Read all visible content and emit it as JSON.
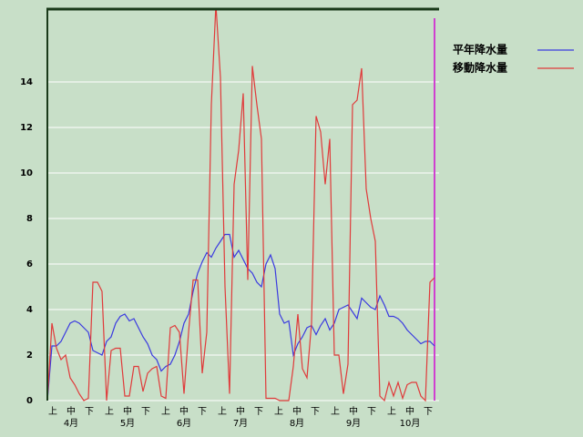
{
  "chart_data": {
    "type": "line",
    "series": [
      {
        "name": "平年降水量",
        "color": "#3a3ae0",
        "values": [
          0,
          2.4,
          2.4,
          2.6,
          3.0,
          3.4,
          3.5,
          3.4,
          3.2,
          3.0,
          2.2,
          2.1,
          2.0,
          2.6,
          2.8,
          3.4,
          3.7,
          3.8,
          3.5,
          3.6,
          3.2,
          2.8,
          2.5,
          2.0,
          1.8,
          1.3,
          1.5,
          1.6,
          2.0,
          2.6,
          3.4,
          3.8,
          4.8,
          5.6,
          6.1,
          6.5,
          6.3,
          6.7,
          7.0,
          7.3,
          7.3,
          6.3,
          6.6,
          6.2,
          5.8,
          5.6,
          5.2,
          5.0,
          6.0,
          6.4,
          5.8,
          3.8,
          3.4,
          3.5,
          2.0,
          2.5,
          2.8,
          3.2,
          3.3,
          2.9,
          3.3,
          3.6,
          3.1,
          3.4,
          4.0,
          4.1,
          4.2,
          3.9,
          3.6,
          4.5,
          4.3,
          4.1,
          4.0,
          4.6,
          4.2,
          3.7,
          3.7,
          3.6,
          3.4,
          3.1,
          2.9,
          2.7,
          2.5,
          2.6,
          2.6,
          2.4
        ]
      },
      {
        "name": "移動降水量",
        "color": "#e03a3a",
        "values": [
          0,
          3.4,
          2.3,
          1.8,
          2.0,
          1.0,
          0.7,
          0.3,
          0,
          0.1,
          5.2,
          5.2,
          4.8,
          0,
          2.2,
          2.3,
          2.3,
          0.2,
          0.2,
          1.5,
          1.5,
          0.4,
          1.2,
          1.4,
          1.5,
          0.2,
          0.1,
          3.2,
          3.3,
          3.0,
          0.3,
          3.0,
          5.3,
          5.3,
          1.2,
          3.0,
          13.0,
          17.4,
          14.2,
          5.0,
          0.3,
          9.5,
          11.0,
          13.5,
          5.3,
          14.7,
          13.0,
          11.5,
          0.1,
          0.1,
          0.1,
          0,
          0,
          0,
          1.5,
          3.8,
          1.4,
          1.0,
          3.4,
          12.5,
          11.8,
          9.5,
          11.5,
          2.0,
          2.0,
          0.3,
          1.6,
          13.0,
          13.2,
          14.6,
          9.3,
          8.0,
          7.0,
          0.2,
          0,
          0.8,
          0.2,
          0.8,
          0.1,
          0.7,
          0.8,
          0.8,
          0.2,
          0,
          5.2,
          5.4
        ]
      }
    ],
    "period_labels": [
      "上",
      "中",
      "下",
      "上",
      "中",
      "下",
      "上",
      "中",
      "下",
      "上",
      "中",
      "下",
      "上",
      "中",
      "下",
      "上",
      "中",
      "下",
      "上",
      "中",
      "下"
    ],
    "months": [
      "4月",
      "5月",
      "6月",
      "7月",
      "8月",
      "9月",
      "10月"
    ],
    "ylim": [
      0,
      17.2
    ],
    "yticks": [
      0,
      2,
      4,
      6,
      8,
      10,
      12,
      14
    ],
    "grid": true
  }
}
